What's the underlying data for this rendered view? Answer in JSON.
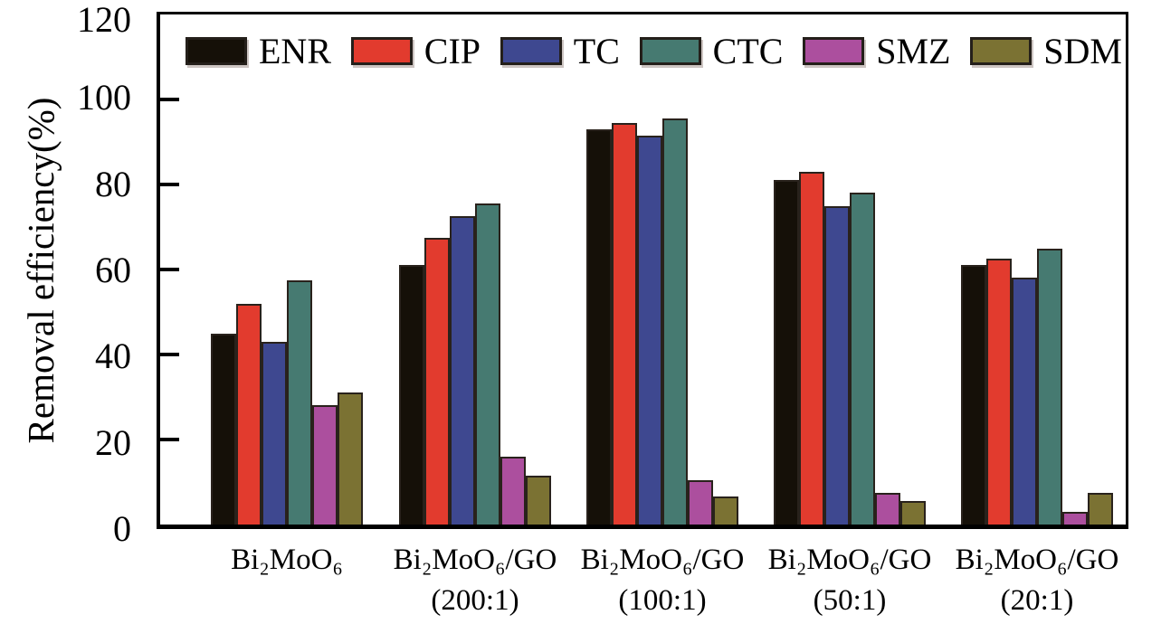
{
  "chart_data": {
    "type": "bar",
    "title": "",
    "xlabel": "",
    "ylabel": "Removal efficiency(%)",
    "ylim": [
      0,
      120
    ],
    "yticks": [
      0,
      20,
      40,
      60,
      80,
      100,
      120
    ],
    "grid": false,
    "legend_position": "top inside, horizontal row",
    "categories": [
      "Bi₂MoO₆",
      "Bi₂MoO₆/GO (200:1)",
      "Bi₂MoO₆/GO (100:1)",
      "Bi₂MoO₆/GO (50:1)",
      "Bi₂MoO₆/GO (20:1)"
    ],
    "category_lines": [
      [
        "Bi₂MoO₆"
      ],
      [
        "Bi₂MoO₆/GO",
        "(200:1)"
      ],
      [
        "Bi₂MoO₆/GO",
        "(100:1)"
      ],
      [
        "Bi₂MoO₆/GO",
        "(50:1)"
      ],
      [
        "Bi₂MoO₆/GO",
        "(20:1)"
      ]
    ],
    "series": [
      {
        "name": "ENR",
        "color": "#151008",
        "values": [
          45,
          61,
          93,
          81,
          61
        ]
      },
      {
        "name": "CIP",
        "color": "#e23b2e",
        "values": [
          52,
          67.5,
          94.5,
          83,
          62.5
        ]
      },
      {
        "name": "TC",
        "color": "#3e4890",
        "values": [
          43,
          72.5,
          91.5,
          75,
          58
        ]
      },
      {
        "name": "CTC",
        "color": "#467a71",
        "values": [
          57.5,
          75.5,
          95.5,
          78,
          65
        ]
      },
      {
        "name": "SMZ",
        "color": "#ac4f9e",
        "values": [
          28,
          16,
          10.5,
          7.5,
          3
        ]
      },
      {
        "name": "SDM",
        "color": "#7b7233",
        "values": [
          31,
          11.5,
          6.5,
          5.5,
          7.5
        ]
      }
    ],
    "styles": {
      "bar_outline_color": "#29221c",
      "axis_color": "#000000",
      "swatch_shadow_color": "#cdc5c2",
      "text_color": "#000000"
    }
  }
}
